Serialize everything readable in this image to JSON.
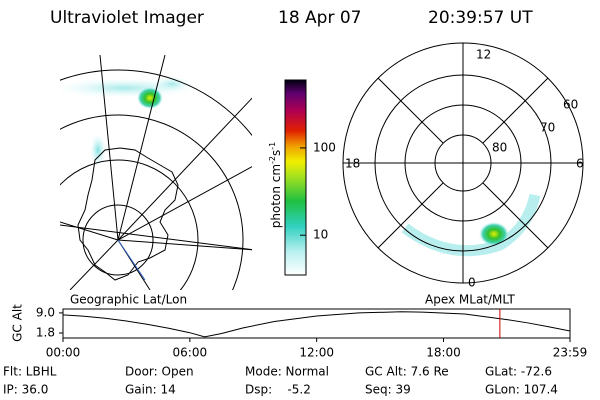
{
  "header": {
    "title": "Ultraviolet Imager",
    "date": "18 Apr 07",
    "time": "20:39:57 UT"
  },
  "left_panel": {
    "label": "Geographic Lat/Lon"
  },
  "right_panel": {
    "label": "Apex MLat/MLT",
    "mlt_labels": [
      "12",
      "18",
      "6",
      "0"
    ],
    "lat_labels": [
      "60",
      "70",
      "80"
    ]
  },
  "colorbar": {
    "unit": "photon cm",
    "exp1": "-2",
    "unit2": "s",
    "exp2": "-1",
    "log_scale": true,
    "ylim": [
      3.5,
      600
    ],
    "yticks": [
      10,
      100
    ]
  },
  "chart_data": {
    "type": "line",
    "ylabel": "GC Alt",
    "x": [
      0,
      1,
      2,
      3,
      4,
      5,
      6,
      6.7,
      7.5,
      8.5,
      10,
      12,
      14,
      16,
      17,
      19,
      21,
      22,
      23,
      23.983
    ],
    "values": [
      8.3,
      7.8,
      7.1,
      6.1,
      4.9,
      3.5,
      1.9,
      0.4,
      1.6,
      3.6,
      5.9,
      7.9,
      9.0,
      9.4,
      9.3,
      8.6,
      6.6,
      5.4,
      4.0,
      2.5
    ],
    "color": "#000000",
    "marker_x": 20.666,
    "marker_color": "#cc0000",
    "xlim": [
      0,
      23.983
    ],
    "ylim": [
      0,
      10.4
    ],
    "xticks": [
      {
        "value": 0,
        "label": "00:00"
      },
      {
        "value": 6,
        "label": "06:00"
      },
      {
        "value": 12,
        "label": "12:00"
      },
      {
        "value": 18,
        "label": "18:00"
      },
      {
        "value": 23.983,
        "label": "23:59"
      }
    ],
    "yticks": [
      {
        "value": 9,
        "label": "9.0"
      },
      1.8
    ]
  },
  "footer": {
    "rows": [
      [
        "Flt: LBHL",
        "Door: Open",
        "Mode: Normal",
        "GC Alt: 7.6 Re",
        "GLat: -72.6"
      ],
      [
        "IP: 36.0",
        "Gain: 14",
        "Dsp:    -5.2",
        "Seq: 39",
        "GLon: 107.4"
      ]
    ]
  }
}
